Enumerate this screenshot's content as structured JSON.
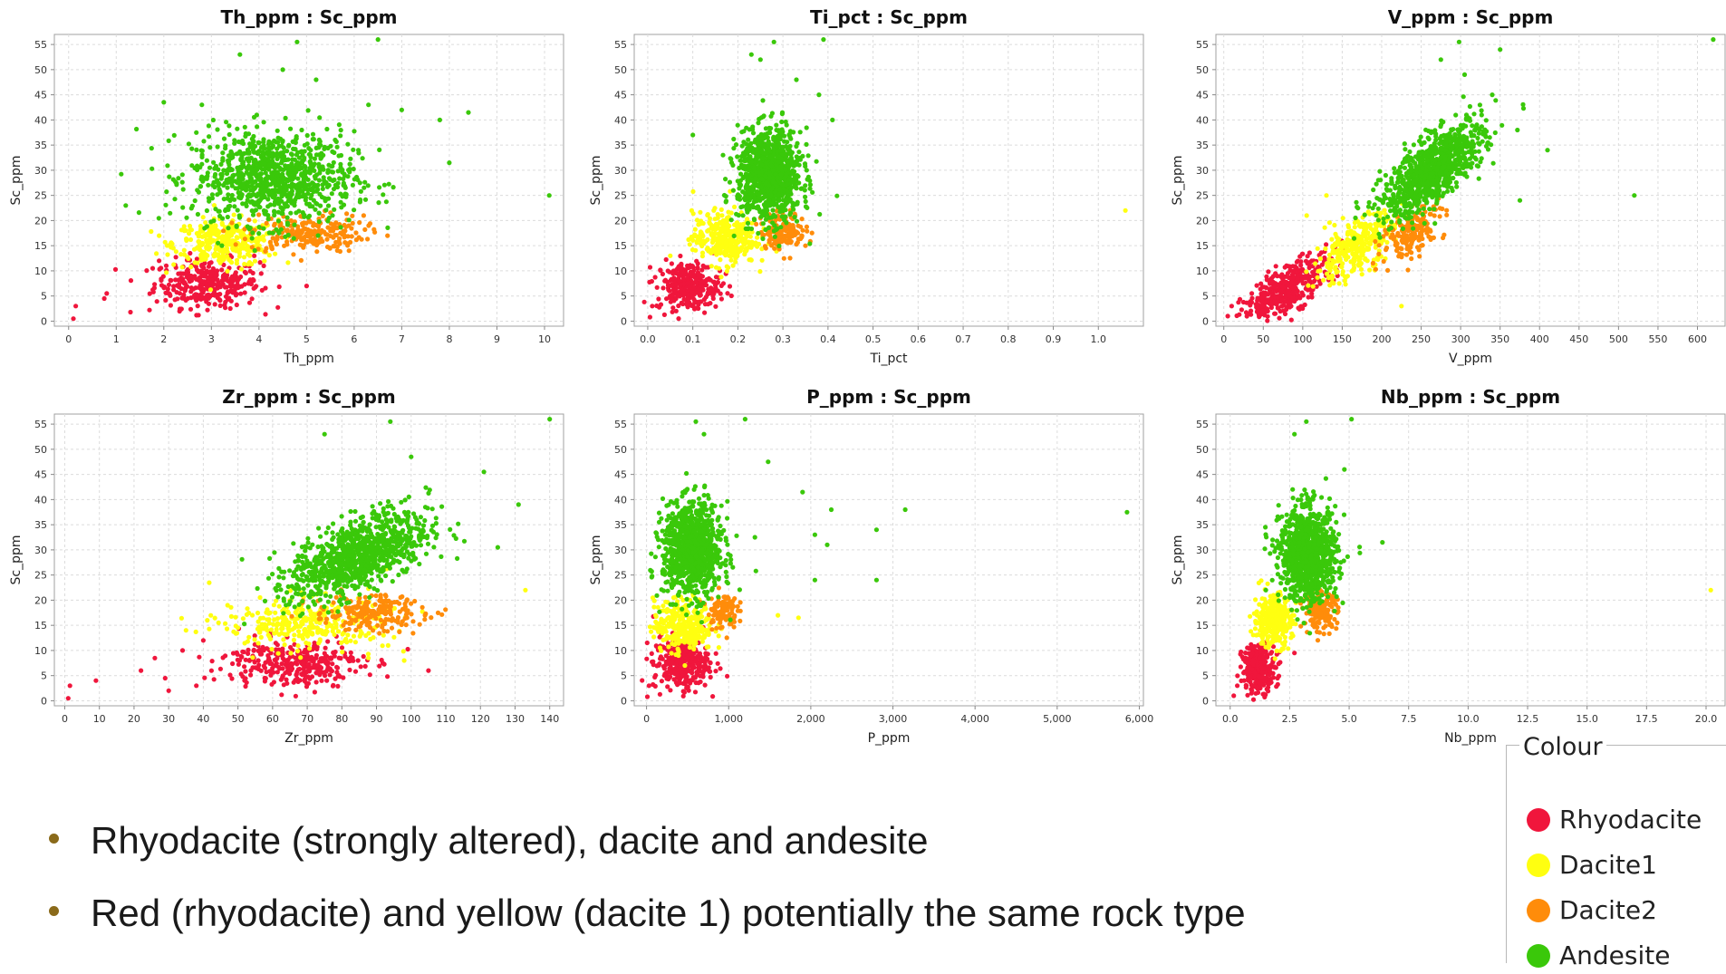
{
  "colors": {
    "Rhyodacite": "#f0163c",
    "Dacite1": "#ffff10",
    "Dacite2": "#ff8c0a",
    "Andesite": "#3ac80a"
  },
  "legend": {
    "title": "Colour",
    "items": [
      {
        "label": "Rhyodacite",
        "color": "#f0163c"
      },
      {
        "label": "Dacite1",
        "color": "#ffff10"
      },
      {
        "label": "Dacite2",
        "color": "#ff8c0a"
      },
      {
        "label": "Andesite",
        "color": "#3ac80a"
      }
    ]
  },
  "bullets": [
    "Rhyodacite (strongly altered), dacite and andesite",
    "Red (rhyodacite) and yellow (dacite 1) potentially the same rock type"
  ],
  "chart_data": [
    {
      "type": "scatter",
      "title": "Th_ppm : Sc_ppm",
      "xlabel": "Th_ppm",
      "ylabel": "Sc_ppm",
      "xlim": [
        -0.3,
        10.4
      ],
      "ylim": [
        -1,
        57
      ],
      "xticks": [
        0,
        1,
        2,
        3,
        4,
        5,
        6,
        7,
        8,
        9,
        10
      ],
      "xtick_labels": [
        "0",
        "1",
        "2",
        "3",
        "4",
        "5",
        "6",
        "7",
        "8",
        "9",
        "10"
      ],
      "yticks": [
        0,
        5,
        10,
        15,
        20,
        25,
        30,
        35,
        40,
        45,
        50,
        55
      ],
      "grid": true,
      "series": [
        {
          "name": "Rhyodacite",
          "center": [
            2.9,
            7.5
          ],
          "spread": [
            0.55,
            2.4
          ],
          "count": 320,
          "points": [
            [
              0.1,
              0.5
            ],
            [
              0.15,
              3
            ],
            [
              0.8,
              5.5
            ],
            [
              0.75,
              4.5
            ],
            [
              1.3,
              1.8
            ],
            [
              1.7,
              2.2
            ],
            [
              5,
              7
            ],
            [
              4.1,
              11
            ],
            [
              3.9,
              13
            ],
            [
              1.9,
              12
            ]
          ]
        },
        {
          "name": "Dacite1",
          "center": [
            3.3,
            15.5
          ],
          "spread": [
            0.55,
            2.3
          ],
          "count": 320,
          "points": [
            [
              1.9,
              17
            ],
            [
              4.4,
              19.5
            ],
            [
              2.2,
              14.5
            ]
          ]
        },
        {
          "name": "Dacite2",
          "center": [
            5.0,
            17.5
          ],
          "spread": [
            0.6,
            1.9
          ],
          "count": 220,
          "points": [
            [
              6.7,
              17
            ],
            [
              6.2,
              21
            ]
          ]
        },
        {
          "name": "Andesite",
          "center": [
            4.3,
            28.5
          ],
          "spread": [
            0.85,
            4.6
          ],
          "count": 950,
          "points": [
            [
              6.5,
              56
            ],
            [
              4.8,
              55.5
            ],
            [
              3.6,
              53
            ],
            [
              4.5,
              50
            ],
            [
              2.0,
              43.5
            ],
            [
              2.8,
              43
            ],
            [
              7.0,
              42
            ],
            [
              8.4,
              41.5
            ],
            [
              10.1,
              25
            ],
            [
              8.0,
              31.5
            ],
            [
              7.8,
              40
            ],
            [
              1.2,
              23
            ],
            [
              6.3,
              43
            ],
            [
              5.2,
              48
            ]
          ]
        }
      ]
    },
    {
      "type": "scatter",
      "title": "Ti_pct : Sc_ppm",
      "xlabel": "Ti_pct",
      "ylabel": "Sc_ppm",
      "xlim": [
        -0.03,
        1.1
      ],
      "ylim": [
        -1,
        57
      ],
      "xticks": [
        0,
        0.1,
        0.2,
        0.3,
        0.4,
        0.5,
        0.6,
        0.7,
        0.8,
        0.9,
        1.0
      ],
      "xtick_labels": [
        "0.0",
        "0.1",
        "0.2",
        "0.3",
        "0.4",
        "0.5",
        "0.6",
        "0.7",
        "0.8",
        "0.9",
        "1.0"
      ],
      "yticks": [
        0,
        5,
        10,
        15,
        20,
        25,
        30,
        35,
        40,
        45,
        50,
        55
      ],
      "grid": true,
      "series": [
        {
          "name": "Rhyodacite",
          "center": [
            0.09,
            7
          ],
          "spread": [
            0.035,
            2.4
          ],
          "count": 280,
          "points": [
            [
              0.005,
              0.8
            ],
            [
              0.01,
              3
            ],
            [
              0.16,
              10
            ]
          ]
        },
        {
          "name": "Dacite1",
          "center": [
            0.17,
            16.5
          ],
          "spread": [
            0.035,
            2.6
          ],
          "count": 320,
          "points": [
            [
              1.06,
              22
            ],
            [
              0.05,
              13
            ]
          ]
        },
        {
          "name": "Dacite2",
          "center": [
            0.3,
            18
          ],
          "spread": [
            0.025,
            1.8
          ],
          "count": 150,
          "points": [
            [
              0.35,
              15
            ]
          ]
        },
        {
          "name": "Andesite",
          "center": [
            0.27,
            29
          ],
          "spread": [
            0.035,
            4.5
          ],
          "count": 950,
          "points": [
            [
              0.39,
              56
            ],
            [
              0.28,
              55.5
            ],
            [
              0.23,
              53
            ],
            [
              0.25,
              52
            ],
            [
              0.33,
              48
            ],
            [
              0.41,
              40
            ],
            [
              0.1,
              37
            ],
            [
              0.38,
              45
            ],
            [
              0.19,
              26
            ]
          ]
        }
      ]
    },
    {
      "type": "scatter",
      "title": "V_ppm : Sc_ppm",
      "xlabel": "V_ppm",
      "ylabel": "Sc_ppm",
      "xlim": [
        -10,
        635
      ],
      "ylim": [
        -1,
        57
      ],
      "xticks": [
        0,
        50,
        100,
        150,
        200,
        250,
        300,
        350,
        400,
        450,
        500,
        550,
        600
      ],
      "xtick_labels": [
        "0",
        "50",
        "100",
        "150",
        "200",
        "250",
        "300",
        "350",
        "400",
        "450",
        "500",
        "550",
        "600"
      ],
      "yticks": [
        0,
        5,
        10,
        15,
        20,
        25,
        30,
        35,
        40,
        45,
        50,
        55
      ],
      "grid": true,
      "series": [
        {
          "name": "Rhyodacite",
          "center": [
            80,
            6.5
          ],
          "spread": [
            28,
            2.3
          ],
          "trend": 0.09,
          "count": 380,
          "points": [
            [
              5,
              1
            ],
            [
              10,
              3
            ]
          ]
        },
        {
          "name": "Dacite1",
          "center": [
            165,
            14.5
          ],
          "spread": [
            25,
            2.6
          ],
          "trend": 0.09,
          "count": 320,
          "points": [
            [
              225,
              3
            ],
            [
              105,
              21
            ],
            [
              130,
              25
            ]
          ]
        },
        {
          "name": "Dacite2",
          "center": [
            240,
            18
          ],
          "spread": [
            20,
            2.2
          ],
          "trend": 0.08,
          "count": 170,
          "points": [
            [
              250,
              15
            ]
          ]
        },
        {
          "name": "Andesite",
          "center": [
            265,
            30
          ],
          "spread": [
            32,
            3.2
          ],
          "trend": 0.105,
          "count": 950,
          "points": [
            [
              620,
              56
            ],
            [
              298,
              55.5
            ],
            [
              350,
              54
            ],
            [
              275,
              52
            ],
            [
              305,
              49
            ],
            [
              372,
              38
            ],
            [
              410,
              34
            ],
            [
              375,
              24
            ],
            [
              520,
              25
            ],
            [
              340,
              45
            ]
          ]
        }
      ]
    },
    {
      "type": "scatter",
      "title": "Zr_ppm : Sc_ppm",
      "xlabel": "Zr_ppm",
      "ylabel": "Sc_ppm",
      "xlim": [
        -3,
        144
      ],
      "ylim": [
        -1,
        57
      ],
      "xticks": [
        0,
        10,
        20,
        30,
        40,
        50,
        60,
        70,
        80,
        90,
        100,
        110,
        120,
        130,
        140
      ],
      "xtick_labels": [
        "0",
        "10",
        "20",
        "30",
        "40",
        "50",
        "60",
        "70",
        "80",
        "90",
        "100",
        "110",
        "120",
        "130",
        "140"
      ],
      "yticks": [
        0,
        5,
        10,
        15,
        20,
        25,
        30,
        35,
        40,
        45,
        50,
        55
      ],
      "grid": true,
      "series": [
        {
          "name": "Rhyodacite",
          "center": [
            66,
            7.5
          ],
          "spread": [
            10,
            2.3
          ],
          "count": 320,
          "points": [
            [
              1,
              0.5
            ],
            [
              1.5,
              3
            ],
            [
              9,
              4
            ],
            [
              22,
              6
            ],
            [
              26,
              8.5
            ],
            [
              30,
              2
            ],
            [
              34,
              10
            ],
            [
              40,
              12
            ],
            [
              105,
              6
            ],
            [
              29,
              4.5
            ],
            [
              38,
              3
            ]
          ]
        },
        {
          "name": "Dacite1",
          "center": [
            70,
            15.5
          ],
          "spread": [
            12,
            2.5
          ],
          "count": 320,
          "points": [
            [
              133,
              22
            ],
            [
              98,
              8
            ],
            [
              35,
              14
            ],
            [
              47,
              19
            ]
          ]
        },
        {
          "name": "Dacite2",
          "center": [
            88,
            17.5
          ],
          "spread": [
            8,
            1.8
          ],
          "count": 200,
          "points": [
            [
              104,
              17
            ]
          ]
        },
        {
          "name": "Andesite",
          "center": [
            85,
            29
          ],
          "spread": [
            10,
            3.6
          ],
          "trend": 0.25,
          "count": 950,
          "points": [
            [
              140,
              56
            ],
            [
              94,
              55.5
            ],
            [
              75,
              53
            ],
            [
              131,
              39
            ],
            [
              121,
              45.5
            ],
            [
              125,
              30.5
            ],
            [
              100,
              48.5
            ]
          ]
        }
      ]
    },
    {
      "type": "scatter",
      "title": "P_ppm : Sc_ppm",
      "xlabel": "P_ppm",
      "ylabel": "Sc_ppm",
      "xlim": [
        -150,
        6050
      ],
      "ylim": [
        -1,
        57
      ],
      "xticks": [
        0,
        1000,
        2000,
        3000,
        4000,
        5000,
        6000
      ],
      "xtick_labels": [
        "0",
        "1,000",
        "2,000",
        "3,000",
        "4,000",
        "5,000",
        "6,000"
      ],
      "yticks": [
        0,
        5,
        10,
        15,
        20,
        25,
        30,
        35,
        40,
        45,
        50,
        55
      ],
      "grid": true,
      "series": [
        {
          "name": "Rhyodacite",
          "center": [
            420,
            7.5
          ],
          "spread": [
            170,
            2.6
          ],
          "count": 320,
          "points": [
            [
              10,
              0.8
            ],
            [
              30,
              3
            ]
          ]
        },
        {
          "name": "Dacite1",
          "center": [
            450,
            15
          ],
          "spread": [
            180,
            2.6
          ],
          "count": 300,
          "points": [
            [
              1600,
              17
            ],
            [
              1850,
              16.5
            ]
          ]
        },
        {
          "name": "Dacite2",
          "center": [
            920,
            18
          ],
          "spread": [
            90,
            1.8
          ],
          "count": 100,
          "points": [
            [
              1020,
              15.5
            ]
          ]
        },
        {
          "name": "Andesite",
          "center": [
            560,
            30
          ],
          "spread": [
            180,
            4.6
          ],
          "count": 950,
          "points": [
            [
              5850,
              37.5
            ],
            [
              3150,
              38
            ],
            [
              2800,
              34
            ],
            [
              1200,
              56
            ],
            [
              600,
              55.5
            ],
            [
              700,
              53
            ],
            [
              1480,
              47.5
            ],
            [
              1900,
              41.5
            ],
            [
              2250,
              38
            ],
            [
              2050,
              33
            ],
            [
              2200,
              31
            ],
            [
              2800,
              24
            ],
            [
              2050,
              24
            ],
            [
              1320,
              32.5
            ]
          ]
        }
      ]
    },
    {
      "type": "scatter",
      "title": "Nb_ppm : Sc_ppm",
      "xlabel": "Nb_ppm",
      "ylabel": "Sc_ppm",
      "xlim": [
        -0.6,
        20.8
      ],
      "ylim": [
        -1,
        57
      ],
      "xticks": [
        0,
        2.5,
        5,
        7.5,
        10,
        12.5,
        15,
        17.5,
        20
      ],
      "xtick_labels": [
        "0.0",
        "2.5",
        "5.0",
        "7.5",
        "10.0",
        "12.5",
        "15.0",
        "17.5",
        "20.0"
      ],
      "yticks": [
        0,
        5,
        10,
        15,
        20,
        25,
        30,
        35,
        40,
        45,
        50,
        55
      ],
      "grid": true,
      "series": [
        {
          "name": "Rhyodacite",
          "center": [
            1.2,
            6.5
          ],
          "spread": [
            0.35,
            2.3
          ],
          "count": 280,
          "points": [
            [
              0.15,
              1
            ],
            [
              0.3,
              3
            ],
            [
              2.7,
              9.5
            ]
          ]
        },
        {
          "name": "Dacite1",
          "center": [
            1.8,
            16
          ],
          "spread": [
            0.4,
            2.6
          ],
          "count": 320,
          "points": [
            [
              20.2,
              22
            ]
          ]
        },
        {
          "name": "Dacite2",
          "center": [
            3.8,
            18
          ],
          "spread": [
            0.35,
            1.8
          ],
          "count": 160,
          "points": [
            [
              4.5,
              15.5
            ]
          ]
        },
        {
          "name": "Andesite",
          "center": [
            3.3,
            29
          ],
          "spread": [
            0.6,
            4.6
          ],
          "count": 950,
          "points": [
            [
              5.1,
              56
            ],
            [
              3.2,
              55.5
            ],
            [
              2.7,
              53
            ],
            [
              6.4,
              31.5
            ],
            [
              1.5,
              22
            ],
            [
              4.8,
              46
            ]
          ]
        }
      ]
    }
  ]
}
